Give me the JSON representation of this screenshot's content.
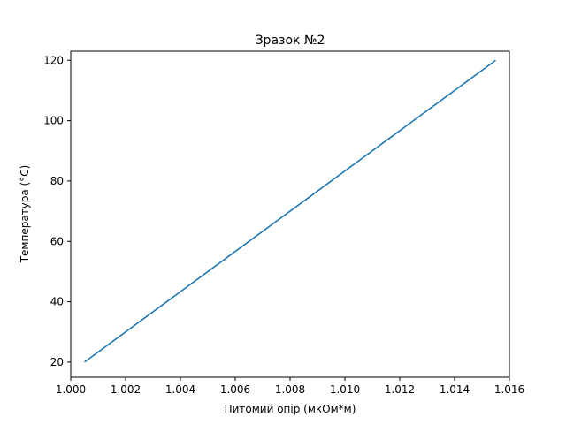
{
  "chart_data": {
    "type": "line",
    "title": "Зразок №2",
    "xlabel": "Питомий опір (мкОм*м)",
    "ylabel": "Температура ($^\\circ$C)",
    "ylabel_display": "Температура (°C)",
    "xlim": [
      1.0,
      1.016
    ],
    "ylim": [
      15,
      123
    ],
    "xticks": [
      1.0,
      1.002,
      1.004,
      1.006,
      1.008,
      1.01,
      1.012,
      1.014,
      1.016
    ],
    "xtick_labels": [
      "1.000",
      "1.002",
      "1.004",
      "1.006",
      "1.008",
      "1.010",
      "1.012",
      "1.014",
      "1.016"
    ],
    "yticks": [
      20,
      40,
      60,
      80,
      100,
      120
    ],
    "ytick_labels": [
      "20",
      "40",
      "60",
      "80",
      "100",
      "120"
    ],
    "grid": false,
    "series": [
      {
        "color": "#1f77b4",
        "x": [
          1.0005,
          1.0155
        ],
        "y": [
          20,
          120
        ]
      }
    ]
  }
}
